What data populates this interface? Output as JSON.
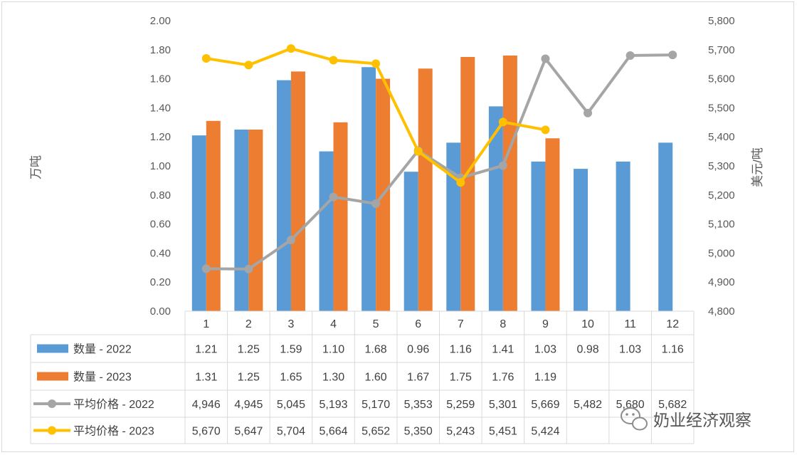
{
  "chart_data": {
    "type": "bar",
    "categories": [
      "1",
      "2",
      "3",
      "4",
      "5",
      "6",
      "7",
      "8",
      "9",
      "10",
      "11",
      "12"
    ],
    "series": [
      {
        "name": "数量 - 2022",
        "type": "bar",
        "axis": "left",
        "color": "#5b9bd5",
        "values": [
          1.21,
          1.25,
          1.59,
          1.1,
          1.68,
          0.96,
          1.16,
          1.41,
          1.03,
          0.98,
          1.03,
          1.16
        ],
        "labels": [
          "1.21",
          "1.25",
          "1.59",
          "1.10",
          "1.68",
          "0.96",
          "1.16",
          "1.41",
          "1.03",
          "0.98",
          "1.03",
          "1.16"
        ]
      },
      {
        "name": "数量 - 2023",
        "type": "bar",
        "axis": "left",
        "color": "#ed7d31",
        "values": [
          1.31,
          1.25,
          1.65,
          1.3,
          1.6,
          1.67,
          1.75,
          1.76,
          1.19,
          null,
          null,
          null
        ],
        "labels": [
          "1.31",
          "1.25",
          "1.65",
          "1.30",
          "1.60",
          "1.67",
          "1.75",
          "1.76",
          "1.19",
          "",
          "",
          ""
        ]
      },
      {
        "name": "平均价格 - 2022",
        "type": "line",
        "axis": "right",
        "color": "#a5a5a5",
        "values": [
          4946,
          4945,
          5045,
          5193,
          5170,
          5353,
          5259,
          5301,
          5669,
          5482,
          5680,
          5682
        ],
        "labels": [
          "4,946",
          "4,945",
          "5,045",
          "5,193",
          "5,170",
          "5,353",
          "5,259",
          "5,301",
          "5,669",
          "5,482",
          "5,680",
          "5,682"
        ]
      },
      {
        "name": "平均价格 - 2023",
        "type": "line",
        "axis": "right",
        "color": "#ffc000",
        "values": [
          5670,
          5647,
          5704,
          5664,
          5652,
          5350,
          5243,
          5451,
          5424,
          null,
          null,
          null
        ],
        "labels": [
          "5,670",
          "5,647",
          "5,704",
          "5,664",
          "5,652",
          "5,350",
          "5,243",
          "5,451",
          "5,424",
          "",
          "",
          ""
        ]
      }
    ],
    "ylabel": "万吨",
    "y2label": "美元/吨",
    "ylim": [
      0,
      2
    ],
    "y2lim": [
      4800,
      5800
    ],
    "yticks": [
      "0.00",
      "0.20",
      "0.40",
      "0.60",
      "0.80",
      "1.00",
      "1.20",
      "1.40",
      "1.60",
      "1.80",
      "2.00"
    ],
    "y2ticks": [
      "4,800",
      "4,900",
      "5,000",
      "5,100",
      "5,200",
      "5,300",
      "5,400",
      "5,500",
      "5,600",
      "5,700",
      "5,800"
    ],
    "grid": false,
    "legend": "data-table"
  },
  "watermark": {
    "text": "奶业经济观察",
    "icon": "wechat-icon"
  }
}
